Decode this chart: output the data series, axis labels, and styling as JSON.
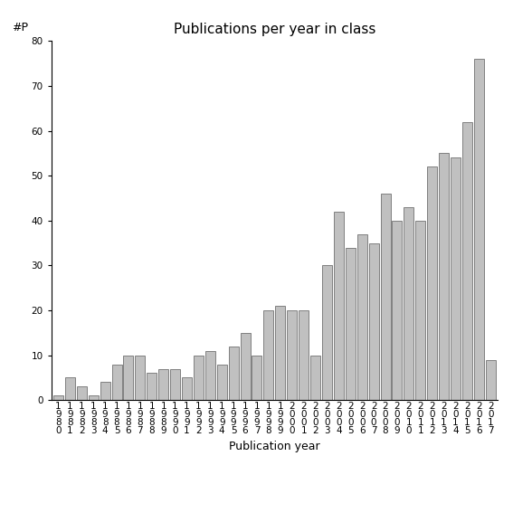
{
  "title": "Publications per year in class",
  "xlabel": "Publication year",
  "ylabel": "#P",
  "years": [
    1980,
    1981,
    1982,
    1983,
    1984,
    1985,
    1986,
    1987,
    1988,
    1989,
    1990,
    1991,
    1992,
    1993,
    1994,
    1995,
    1996,
    1997,
    1998,
    1999,
    2000,
    2001,
    2002,
    2003,
    2004,
    2005,
    2006,
    2007,
    2008,
    2009,
    2010,
    2011,
    2012,
    2013,
    2014,
    2015,
    2016,
    2017
  ],
  "values": [
    1,
    5,
    3,
    1,
    4,
    8,
    10,
    10,
    6,
    7,
    7,
    5,
    10,
    11,
    8,
    12,
    15,
    10,
    20,
    21,
    20,
    20,
    10,
    30,
    42,
    34,
    37,
    35,
    46,
    40,
    43,
    40,
    52,
    55,
    54,
    62,
    76,
    9
  ],
  "bar_color": "#c0c0c0",
  "bar_edgecolor": "#808080",
  "ylim": [
    0,
    80
  ],
  "yticks": [
    0,
    10,
    20,
    30,
    40,
    50,
    60,
    70,
    80
  ],
  "bg_color": "#ffffff",
  "title_fontsize": 11,
  "axis_label_fontsize": 9,
  "tick_fontsize": 7.5
}
